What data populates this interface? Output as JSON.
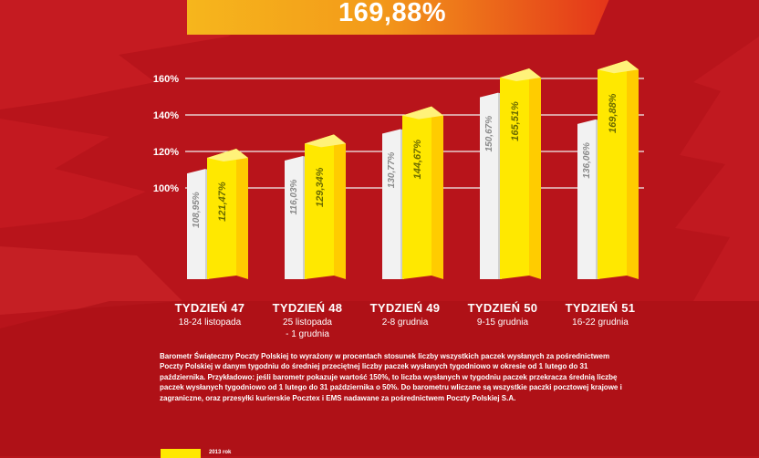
{
  "headline": {
    "value": "169,88%"
  },
  "chart_data": {
    "type": "bar",
    "categories": [
      "TYDZIEŃ 47",
      "TYDZIEŃ 48",
      "TYDZIEŃ 49",
      "TYDZIEŃ 50",
      "TYDZIEŃ 51"
    ],
    "date_ranges": [
      "18-24 listopada",
      "25 listopada\n- 1 grudnia",
      "2-8 grudnia",
      "9-15 grudnia",
      "16-22 grudnia"
    ],
    "series": [
      {
        "values": [
          108.95,
          116.03,
          130.77,
          150.67,
          136.06
        ],
        "labels": [
          "108,95%",
          "116,03%",
          "130,77%",
          "150,67%",
          "136,06%"
        ],
        "color": "#f2f2f2"
      },
      {
        "name": "2013 rok",
        "values": [
          121.47,
          129.34,
          144.67,
          165.51,
          169.88
        ],
        "labels": [
          "121,47%",
          "129,34%",
          "144,67%",
          "165,51%",
          "169,88%"
        ],
        "color": "#ffe800"
      }
    ],
    "y_ticks": [
      100,
      120,
      140,
      160
    ],
    "y_tick_labels": [
      "100%",
      "120%",
      "140%",
      "160%"
    ],
    "ylim": [
      56,
      160
    ],
    "grid": true
  },
  "description": "Barometr Świąteczny Poczty Polskiej to wyrażony w procentach stosunek liczby wszystkich paczek wysłanych za pośrednictwem Poczty Polskiej w danym tygodniu do średniej przeciętnej liczby paczek wysłanych tygodniowo w okresie od 1 lutego do 31 października. Przykładowo: jeśli barometr pokazuje wartość 150%, to liczba wysłanych w tygodniu paczek przekracza średnią liczbę paczek wysłanych tygodniowo od 1 lutego do 31 października o 50%. Do barometru wliczane są wszystkie paczki pocztowej krajowe i zagraniczne, oraz przesyłki kurierskie Pocztex i EMS nadawane za pośrednictwem Poczty Polskiej S.A.",
  "legend": {
    "label": "2013 rok",
    "color": "#ffe800"
  },
  "colors": {
    "background": "#b8141b",
    "accent": "#ffe800",
    "banner": "#f39a1a"
  }
}
